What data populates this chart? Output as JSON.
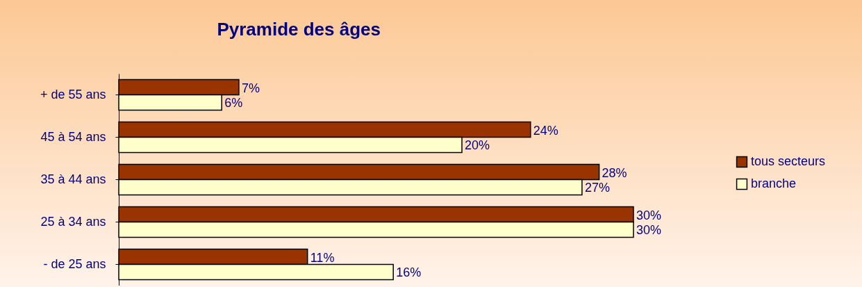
{
  "chart_data": {
    "type": "bar",
    "orientation": "horizontal",
    "title": "Pyramide des âges",
    "categories": [
      "+ de 55 ans",
      "45 à 54 ans",
      "35 à 44 ans",
      "25 à 34 ans",
      "- de 25 ans"
    ],
    "series": [
      {
        "name": "tous secteurs",
        "color": "#993300",
        "values": [
          7,
          24,
          28,
          30,
          11
        ],
        "value_labels": [
          "7%",
          "24%",
          "28%",
          "30%",
          "11%"
        ]
      },
      {
        "name": "branche",
        "color": "#ffffcc",
        "values": [
          6,
          20,
          27,
          30,
          16
        ],
        "value_labels": [
          "6%",
          "20%",
          "27%",
          "30%",
          "16%"
        ]
      }
    ],
    "legend": "right"
  }
}
